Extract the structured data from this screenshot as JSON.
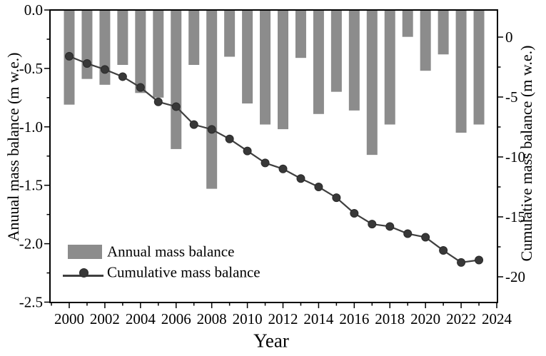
{
  "figure_labels": {
    "xlabel": "Year",
    "ylabel_left": "Anuual mass balance (m w.e.)",
    "ylabel_right": "Cumulative mass balance (m w.e.)",
    "legend_annual": "Annual mass balance",
    "legend_cumulative": "Cumulative mass balance"
  },
  "colors": {
    "bar": "#8c8c8c",
    "line": "#3f3f3f",
    "marker_fill": "#383838",
    "marker_edge": "#2a2a2a",
    "axis": "#000000",
    "text": "#000000",
    "background": "#ffffff"
  },
  "chart_data": {
    "type": "bar+line",
    "title": "",
    "xlabel": "Year",
    "ylabel_left": "Anuual mass balance (m w.e.)",
    "ylabel_right": "Cumulative mass balance (m w.e.)",
    "grid": false,
    "legend_position": "lower left",
    "categories": [
      2000,
      2001,
      2002,
      2003,
      2004,
      2005,
      2006,
      2007,
      2008,
      2009,
      2010,
      2011,
      2012,
      2013,
      2014,
      2015,
      2016,
      2017,
      2018,
      2019,
      2020,
      2021,
      2022,
      2023
    ],
    "series": [
      {
        "name": "Annual mass balance",
        "type": "bar",
        "axis": "left",
        "values": [
          -0.81,
          -0.59,
          -0.64,
          -0.47,
          -0.71,
          -0.75,
          -1.19,
          -0.47,
          -1.53,
          -0.4,
          -0.8,
          -0.98,
          -1.02,
          -0.41,
          -0.89,
          -0.7,
          -0.86,
          -1.24,
          -0.98,
          -0.23,
          -0.52,
          -0.38,
          -1.05,
          -0.98
        ]
      },
      {
        "name": "Cumulative mass balance",
        "type": "line",
        "axis": "right",
        "values": [
          -1.6,
          -2.2,
          -2.7,
          -3.3,
          -4.2,
          -5.4,
          -5.8,
          -7.3,
          -7.7,
          -8.5,
          -9.5,
          -10.5,
          -11.0,
          -11.8,
          -12.5,
          -13.4,
          -14.7,
          -15.6,
          -15.8,
          -16.4,
          -16.7,
          -17.8,
          -18.8,
          -18.6
        ]
      }
    ],
    "x_major_ticks": [
      2000,
      2002,
      2004,
      2006,
      2008,
      2010,
      2012,
      2014,
      2016,
      2018,
      2020,
      2022,
      2024
    ],
    "x_minor_ticks": [
      1999,
      2001,
      2003,
      2005,
      2007,
      2009,
      2011,
      2013,
      2015,
      2017,
      2019,
      2021,
      2023
    ],
    "left_major_ticks": [
      0.0,
      -0.5,
      -1.0,
      -1.5,
      -2.0,
      -2.5
    ],
    "left_minor_ticks": [
      -0.25,
      -0.75,
      -1.25,
      -1.75,
      -2.25
    ],
    "right_major_ticks": [
      0,
      -5,
      -10,
      -15,
      -20
    ],
    "right_minor_ticks": [
      -2.5,
      -7.5,
      -12.5,
      -17.5
    ],
    "ylim_left": [
      0,
      -2.5
    ],
    "ylim_right": [
      2.3,
      -22.1
    ],
    "xlim": [
      1998.9,
      2024.05
    ]
  }
}
